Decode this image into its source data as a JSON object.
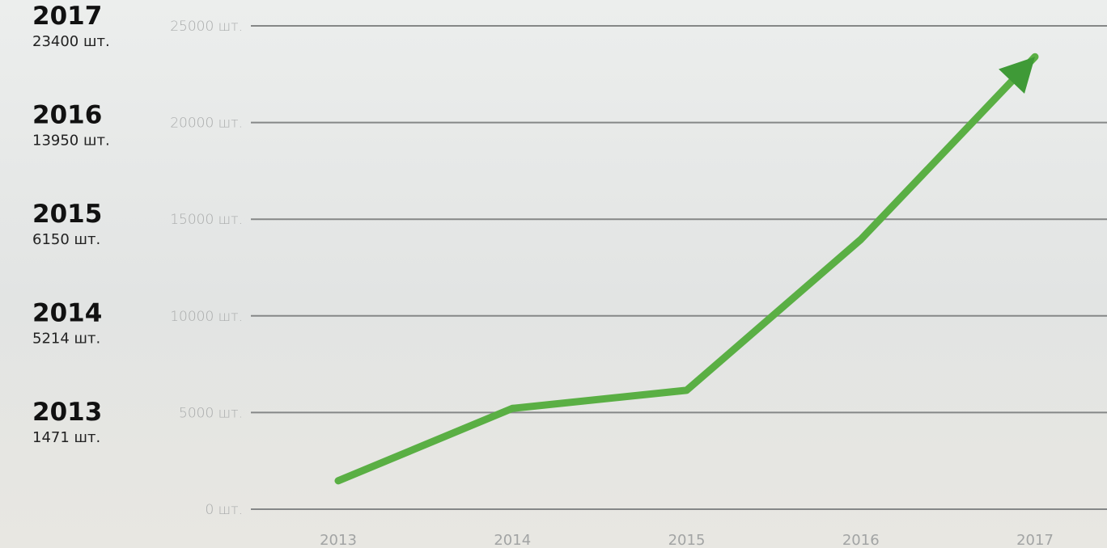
{
  "chart_data": {
    "type": "line",
    "categories": [
      "2013",
      "2014",
      "2015",
      "2016",
      "2017"
    ],
    "values": [
      1471,
      5214,
      6150,
      13950,
      23400
    ],
    "value_labels": [
      "1471 шт.",
      "5214 шт.",
      "6150 шт.",
      "13950 шт.",
      "23400 шт."
    ],
    "color": "#5aaf44",
    "ylim": [
      0,
      25000
    ],
    "yticks": [
      {
        "value": 0,
        "label": "0 шт."
      },
      {
        "value": 5000,
        "label": "5000 шт."
      },
      {
        "value": 10000,
        "label": "10000 шт."
      },
      {
        "value": 15000,
        "label": "15000 шт."
      },
      {
        "value": 20000,
        "label": "20000 шт."
      },
      {
        "value": 25000,
        "label": "25000 шт."
      }
    ],
    "grid": true
  }
}
